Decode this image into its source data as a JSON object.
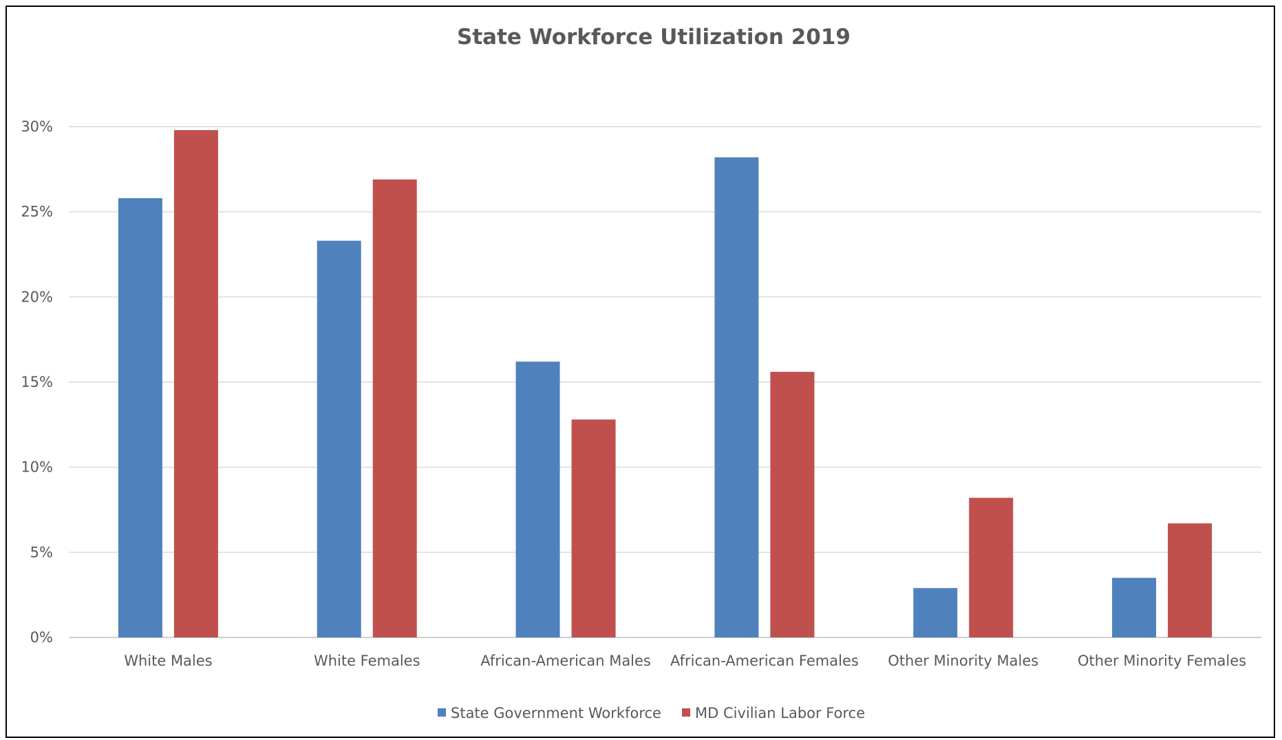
{
  "chart_data": {
    "type": "bar",
    "title": "State Workforce Utilization 2019",
    "xlabel": "",
    "ylabel": "",
    "ylim": [
      0,
      30
    ],
    "yticks": [
      "0%",
      "5%",
      "10%",
      "15%",
      "20%",
      "25%",
      "30%"
    ],
    "grid": true,
    "legend_position": "bottom",
    "categories": [
      "White Males",
      "White Females",
      "African-American Males",
      "African-American Females",
      "Other Minority Males",
      "Other Minority Females"
    ],
    "series": [
      {
        "name": "State Government Workforce",
        "color": "#4f81bd",
        "values": [
          25.8,
          23.3,
          16.2,
          28.2,
          2.9,
          3.5
        ]
      },
      {
        "name": "MD Civilian Labor Force",
        "color": "#c0504d",
        "values": [
          29.8,
          26.9,
          12.8,
          15.6,
          8.2,
          6.7
        ]
      }
    ]
  }
}
